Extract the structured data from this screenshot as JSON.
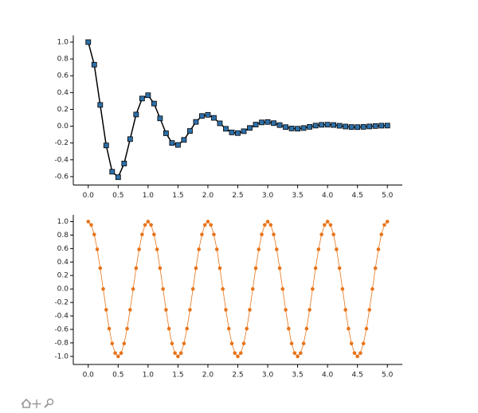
{
  "chart_data": [
    {
      "type": "line",
      "marker": "square",
      "x": [
        0,
        0.1,
        0.2,
        0.3,
        0.4,
        0.5,
        0.6,
        0.7,
        0.8,
        0.9,
        1,
        1.1,
        1.2,
        1.3,
        1.4,
        1.5,
        1.6,
        1.7,
        1.8,
        1.9,
        2,
        2.1,
        2.2,
        2.3,
        2.4,
        2.5,
        2.6,
        2.7,
        2.8,
        2.9,
        3,
        3.1,
        3.2,
        3.3,
        3.4,
        3.5,
        3.6,
        3.7,
        3.8,
        3.9,
        4,
        4.1,
        4.2,
        4.3,
        4.4,
        4.5,
        4.6,
        4.7,
        4.8,
        4.9,
        5
      ],
      "series": [
        {
          "color": "#000000",
          "marker_color": "#2e6fa7",
          "values": [
            1,
            0.732,
            0.253,
            -0.229,
            -0.542,
            -0.607,
            -0.444,
            -0.154,
            0.139,
            0.329,
            0.368,
            0.269,
            0.093,
            -0.084,
            -0.2,
            -0.223,
            -0.163,
            -0.057,
            0.051,
            0.121,
            0.135,
            0.099,
            0.034,
            -0.031,
            -0.074,
            -0.082,
            -0.06,
            -0.021,
            0.019,
            0.045,
            0.05,
            0.036,
            0.013,
            -0.011,
            -0.027,
            -0.03,
            -0.022,
            -0.008,
            0.007,
            0.016,
            0.018,
            0.014,
            0.005,
            -0.004,
            -0.01,
            -0.011,
            -0.008,
            -0.003,
            0.002,
            0.006,
            0.007
          ]
        }
      ],
      "xlim": [
        -0.25,
        5.25
      ],
      "ylim": [
        -0.7,
        1.08
      ],
      "xticks": [
        {
          "value": 0,
          "label": "0.0"
        },
        0.5,
        {
          "value": 1,
          "label": "1.0"
        },
        1.5,
        {
          "value": 2,
          "label": "2.0"
        },
        2.5,
        {
          "value": 3,
          "label": "3.0"
        },
        3.5,
        {
          "value": 4,
          "label": "4.0"
        },
        4.5,
        {
          "value": 5,
          "label": "5.0"
        }
      ],
      "yticks": [
        -0.6,
        -0.4,
        -0.2,
        {
          "value": 0,
          "label": "0.0"
        },
        0.2,
        0.4,
        0.6,
        0.8,
        {
          "value": 1,
          "label": "1.0"
        }
      ]
    },
    {
      "type": "scatter",
      "marker": "circle",
      "x": [
        0,
        0.05,
        0.1,
        0.15,
        0.2,
        0.25,
        0.3,
        0.35,
        0.4,
        0.45,
        0.5,
        0.55,
        0.6,
        0.65,
        0.7,
        0.75,
        0.8,
        0.85,
        0.9,
        0.95,
        1,
        1.05,
        1.1,
        1.15,
        1.2,
        1.25,
        1.3,
        1.35,
        1.4,
        1.45,
        1.5,
        1.55,
        1.6,
        1.65,
        1.7,
        1.75,
        1.8,
        1.85,
        1.9,
        1.95,
        2,
        2.05,
        2.1,
        2.15,
        2.2,
        2.25,
        2.3,
        2.35,
        2.4,
        2.45,
        2.5,
        2.55,
        2.6,
        2.65,
        2.7,
        2.75,
        2.8,
        2.85,
        2.9,
        2.95,
        3,
        3.05,
        3.1,
        3.15,
        3.2,
        3.25,
        3.3,
        3.35,
        3.4,
        3.45,
        3.5,
        3.55,
        3.6,
        3.65,
        3.7,
        3.75,
        3.8,
        3.85,
        3.9,
        3.95,
        4,
        4.05,
        4.1,
        4.15,
        4.2,
        4.25,
        4.3,
        4.35,
        4.4,
        4.45,
        4.5,
        4.55,
        4.6,
        4.65,
        4.7,
        4.75,
        4.8,
        4.85,
        4.9,
        4.95,
        5
      ],
      "series": [
        {
          "color": "#e8741a",
          "values": [
            1,
            0.951,
            0.809,
            0.588,
            0.309,
            0,
            -0.309,
            -0.588,
            -0.809,
            -0.951,
            -1,
            -0.951,
            -0.809,
            -0.588,
            -0.309,
            0,
            0.309,
            0.588,
            0.809,
            0.951,
            1,
            0.951,
            0.809,
            0.588,
            0.309,
            0,
            -0.309,
            -0.588,
            -0.809,
            -0.951,
            -1,
            -0.951,
            -0.809,
            -0.588,
            -0.309,
            0,
            0.309,
            0.588,
            0.809,
            0.951,
            1,
            0.951,
            0.809,
            0.588,
            0.309,
            0,
            -0.309,
            -0.588,
            -0.809,
            -0.951,
            -1,
            -0.951,
            -0.809,
            -0.588,
            -0.309,
            0,
            0.309,
            0.588,
            0.809,
            0.951,
            1,
            0.951,
            0.809,
            0.588,
            0.309,
            0,
            -0.309,
            -0.588,
            -0.809,
            -0.951,
            -1,
            -0.951,
            -0.809,
            -0.588,
            -0.309,
            0,
            0.309,
            0.588,
            0.809,
            0.951,
            1,
            0.951,
            0.809,
            0.588,
            0.309,
            0,
            -0.309,
            -0.588,
            -0.809,
            -0.951,
            -1,
            -0.951,
            -0.809,
            -0.588,
            -0.309,
            0,
            0.309,
            0.588,
            0.809,
            0.951,
            1
          ]
        }
      ],
      "xlim": [
        -0.25,
        5.25
      ],
      "ylim": [
        -1.12,
        1.1
      ],
      "xticks": [
        {
          "value": 0,
          "label": "0.0"
        },
        0.5,
        {
          "value": 1,
          "label": "1.0"
        },
        1.5,
        {
          "value": 2,
          "label": "2.0"
        },
        2.5,
        {
          "value": 3,
          "label": "3.0"
        },
        3.5,
        {
          "value": 4,
          "label": "4.0"
        },
        4.5,
        {
          "value": 5,
          "label": "5.0"
        }
      ],
      "yticks": [
        {
          "value": -1,
          "label": "-1.0"
        },
        -0.8,
        -0.6,
        -0.4,
        -0.2,
        {
          "value": 0,
          "label": "0.0"
        },
        0.2,
        0.4,
        0.6,
        0.8,
        {
          "value": 1,
          "label": "1.0"
        }
      ]
    }
  ]
}
